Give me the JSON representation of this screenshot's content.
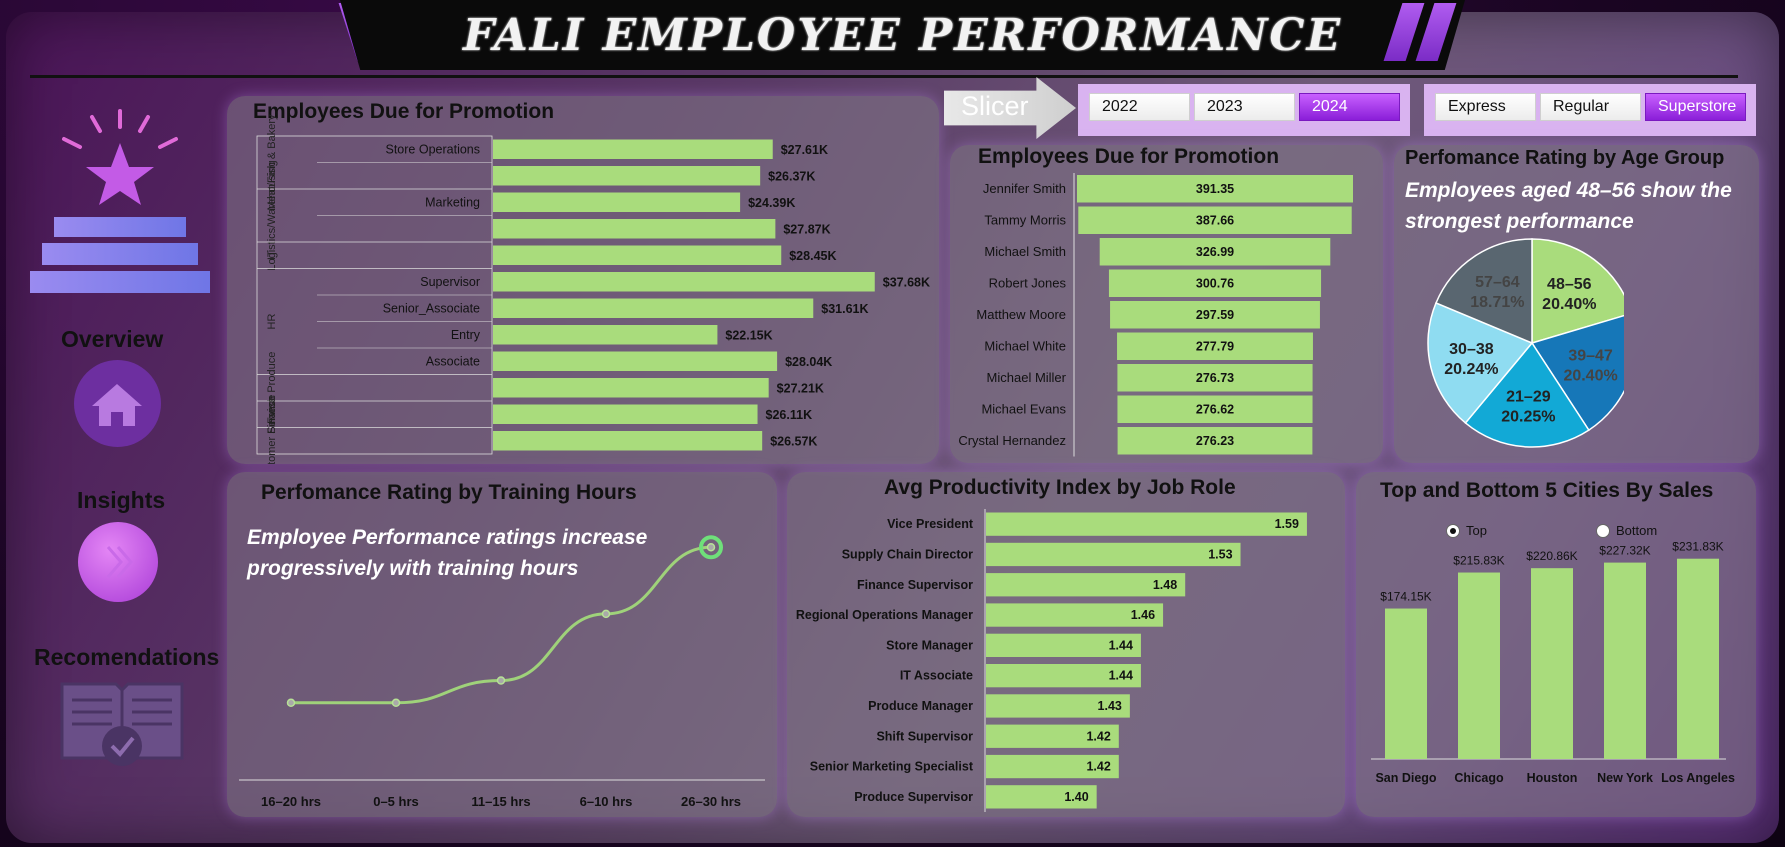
{
  "header": {
    "title": "FALI EMPLOYEE PERFORMANCE"
  },
  "sidebar": {
    "overview_label": "Overview",
    "insights_label": "Insights",
    "recommendations_label": "Recomendations"
  },
  "slicer": {
    "label": "Slicer",
    "years": [
      "2022",
      "2023",
      "2024"
    ],
    "selected_year": "2024",
    "store_types": [
      "Express",
      "Regular",
      "Superstore"
    ],
    "selected_store_type": "Superstore"
  },
  "panel_promotion_dept": {
    "title": "Employees Due for Promotion"
  },
  "panel_promotion_emp": {
    "title": "Employees Due for Promotion"
  },
  "panel_age": {
    "title": "Perfomance Rating by Age Group",
    "insight": "Employees aged 48–56 show the strongest performance"
  },
  "panel_training": {
    "title": "Perfomance Rating by Training Hours",
    "insight": "Employee Performance ratings increase progressively with training hours"
  },
  "panel_productivity": {
    "title": "Avg Productivity Index by Job Role"
  },
  "panel_cities": {
    "title": "Top and Bottom 5 Cities By Sales",
    "radio_top": "Top",
    "radio_bottom": "Bottom",
    "selected": "Top"
  },
  "colors": {
    "bar": "#a9dc7c",
    "accent": "#9b30e0",
    "pie": [
      "#a9dc7c",
      "#1677b8",
      "#12a9d6",
      "#8fdcf1",
      "#596670"
    ]
  },
  "chart_data": [
    {
      "id": "promotion-by-department",
      "type": "bar",
      "orientation": "horizontal",
      "groups": [
        {
          "name": "Meat/Fish & Bakery",
          "categories": [
            "Store Operations",
            ""
          ]
        },
        {
          "name": "Logistics/Warehousing",
          "categories": [
            "Marketing",
            ""
          ]
        },
        {
          "name": "IT",
          "categories": [
            ""
          ]
        },
        {
          "name": "HR",
          "categories": [
            "Supervisor",
            "Senior_Associate",
            "Entry",
            "Associate"
          ]
        },
        {
          "name": "Fresh Produce",
          "categories": [
            ""
          ]
        },
        {
          "name": "Finance",
          "categories": [
            ""
          ]
        },
        {
          "name": "Customer Service",
          "categories": [
            ""
          ]
        }
      ],
      "values": [
        27.61,
        26.37,
        24.39,
        27.87,
        28.45,
        37.68,
        31.61,
        22.15,
        28.04,
        27.21,
        26.11,
        26.57
      ],
      "data_labels": [
        "$27.61K",
        "$26.37K",
        "$24.39K",
        "$27.87K",
        "$28.45K",
        "$37.68K",
        "$31.61K",
        "$22.15K",
        "$28.04K",
        "$27.21K",
        "$26.11K",
        "$26.57K"
      ],
      "title": "Employees Due for Promotion"
    },
    {
      "id": "promotion-by-employee",
      "type": "bar",
      "orientation": "horizontal",
      "categories": [
        "Jennifer Smith",
        "Tammy Morris",
        "Michael Smith",
        "Robert Jones",
        "Matthew Moore",
        "Michael White",
        "Michael Miller",
        "Michael Evans",
        "Crystal Hernandez"
      ],
      "values": [
        391.35,
        387.66,
        326.99,
        300.76,
        297.59,
        277.79,
        276.73,
        276.62,
        276.23
      ],
      "data_labels": [
        "391.35",
        "387.66",
        "326.99",
        "300.76",
        "297.59",
        "277.79",
        "276.73",
        "276.62",
        "276.23"
      ],
      "title": "Employees Due for Promotion"
    },
    {
      "id": "rating-by-age",
      "type": "pie",
      "categories": [
        "48–56",
        "39–47",
        "21–29",
        "30–38",
        "57–64"
      ],
      "values": [
        20.4,
        20.4,
        20.25,
        20.24,
        18.71
      ],
      "data_labels": [
        "20.40%",
        "20.40%",
        "20.25%",
        "20.24%",
        "18.71%"
      ],
      "title": "Perfomance Rating by Age Group"
    },
    {
      "id": "rating-by-training",
      "type": "line",
      "categories": [
        "16–20 hrs",
        "0–5 hrs",
        "11–15 hrs",
        "6–10 hrs",
        "26–30 hrs"
      ],
      "values": [
        3.0,
        3.0,
        3.1,
        3.4,
        3.7
      ],
      "title": "Perfomance Rating by Training Hours"
    },
    {
      "id": "productivity-by-role",
      "type": "bar",
      "orientation": "horizontal",
      "categories": [
        "Vice President",
        "Supply Chain Director",
        "Finance Supervisor",
        "Regional Operations Manager",
        "Store Manager",
        "IT Associate",
        "Produce Manager",
        "Shift Supervisor",
        "Senior Marketing Specialist",
        "Produce Supervisor"
      ],
      "values": [
        1.59,
        1.53,
        1.48,
        1.46,
        1.44,
        1.44,
        1.43,
        1.42,
        1.42,
        1.4
      ],
      "data_labels": [
        "1.59",
        "1.53",
        "1.48",
        "1.46",
        "1.44",
        "1.44",
        "1.43",
        "1.42",
        "1.42",
        "1.40"
      ],
      "xlim": [
        1.3,
        1.6
      ],
      "title": "Avg Productivity Index by Job Role"
    },
    {
      "id": "cities-by-sales",
      "type": "bar",
      "orientation": "vertical",
      "categories": [
        "San Diego",
        "Chicago",
        "Houston",
        "New York",
        "Los Angeles"
      ],
      "values": [
        174.15,
        215.83,
        220.86,
        227.32,
        231.83
      ],
      "data_labels": [
        "$174.15K",
        "$215.83K",
        "$220.86K",
        "$227.32K",
        "$231.83K"
      ],
      "ylim": [
        0,
        250
      ],
      "title": "Top and Bottom 5 Cities By Sales"
    }
  ]
}
